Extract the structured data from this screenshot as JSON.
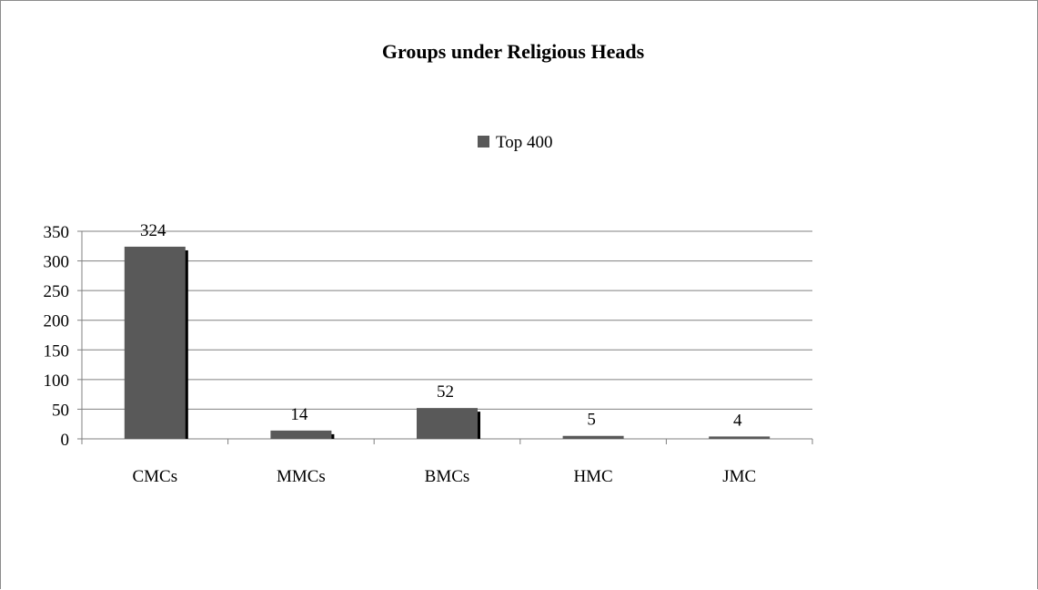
{
  "chart_data": {
    "type": "bar",
    "title": "Groups under Religious Heads",
    "categories": [
      "CMCs",
      "MMCs",
      "BMCs",
      "HMC",
      "JMC"
    ],
    "series": [
      {
        "name": "Top 400",
        "values": [
          324,
          14,
          52,
          5,
          4
        ],
        "color": "#595959"
      }
    ],
    "ylim": [
      0,
      350
    ],
    "yticks": [
      0,
      50,
      100,
      150,
      200,
      250,
      300,
      350
    ],
    "grid": true,
    "legend_position": "top-center",
    "colors": {
      "bar": "#595959",
      "bar_shadow": "#000000",
      "grid": "#808080"
    }
  }
}
